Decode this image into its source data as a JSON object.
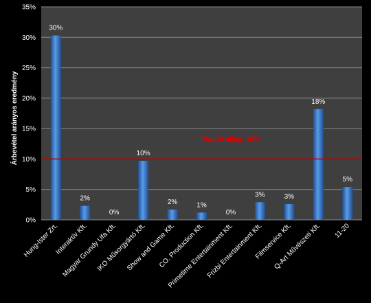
{
  "chart_data": {
    "type": "bar",
    "categories": [
      "Hung-Ister Zrt.",
      "Interaktív Kft.",
      "Magyar Grundy Ufa Kft.",
      "IKO Műsorgyártó Kft.",
      "Show and Game Kft.",
      "CO. Production Kft.",
      "Primetime Entertainment Kft.",
      "Frizbi Entertainment Kft.",
      "Filmservice Kft.",
      "Q-Art Művészeti Kft.",
      "11-20"
    ],
    "values": [
      30.3,
      2.3,
      0,
      9.7,
      1.7,
      1.2,
      0,
      2.9,
      2.6,
      18.2,
      5.4
    ],
    "data_labels": [
      "30%",
      "2%",
      "0%",
      "10%",
      "2%",
      "1%",
      "0%",
      "3%",
      "3%",
      "18%",
      "5%"
    ],
    "ylabel": "Árbevétel arányos eredmény",
    "ylim": [
      0,
      35
    ],
    "yticks": [
      0,
      5,
      10,
      15,
      20,
      25,
      30,
      35
    ],
    "ytick_labels": [
      "0%",
      "5%",
      "10%",
      "15%",
      "20%",
      "25%",
      "30%",
      "35%"
    ],
    "grid": true,
    "reference_line": {
      "value": 10,
      "label": "Top 20 átlag: 10%",
      "color": "#c00000"
    },
    "colors": {
      "bar": "#4a86d0",
      "background": "#000000",
      "plot_area": "#3f3f3f",
      "grid": "#8a8a8a",
      "text": "#ffffff"
    }
  }
}
